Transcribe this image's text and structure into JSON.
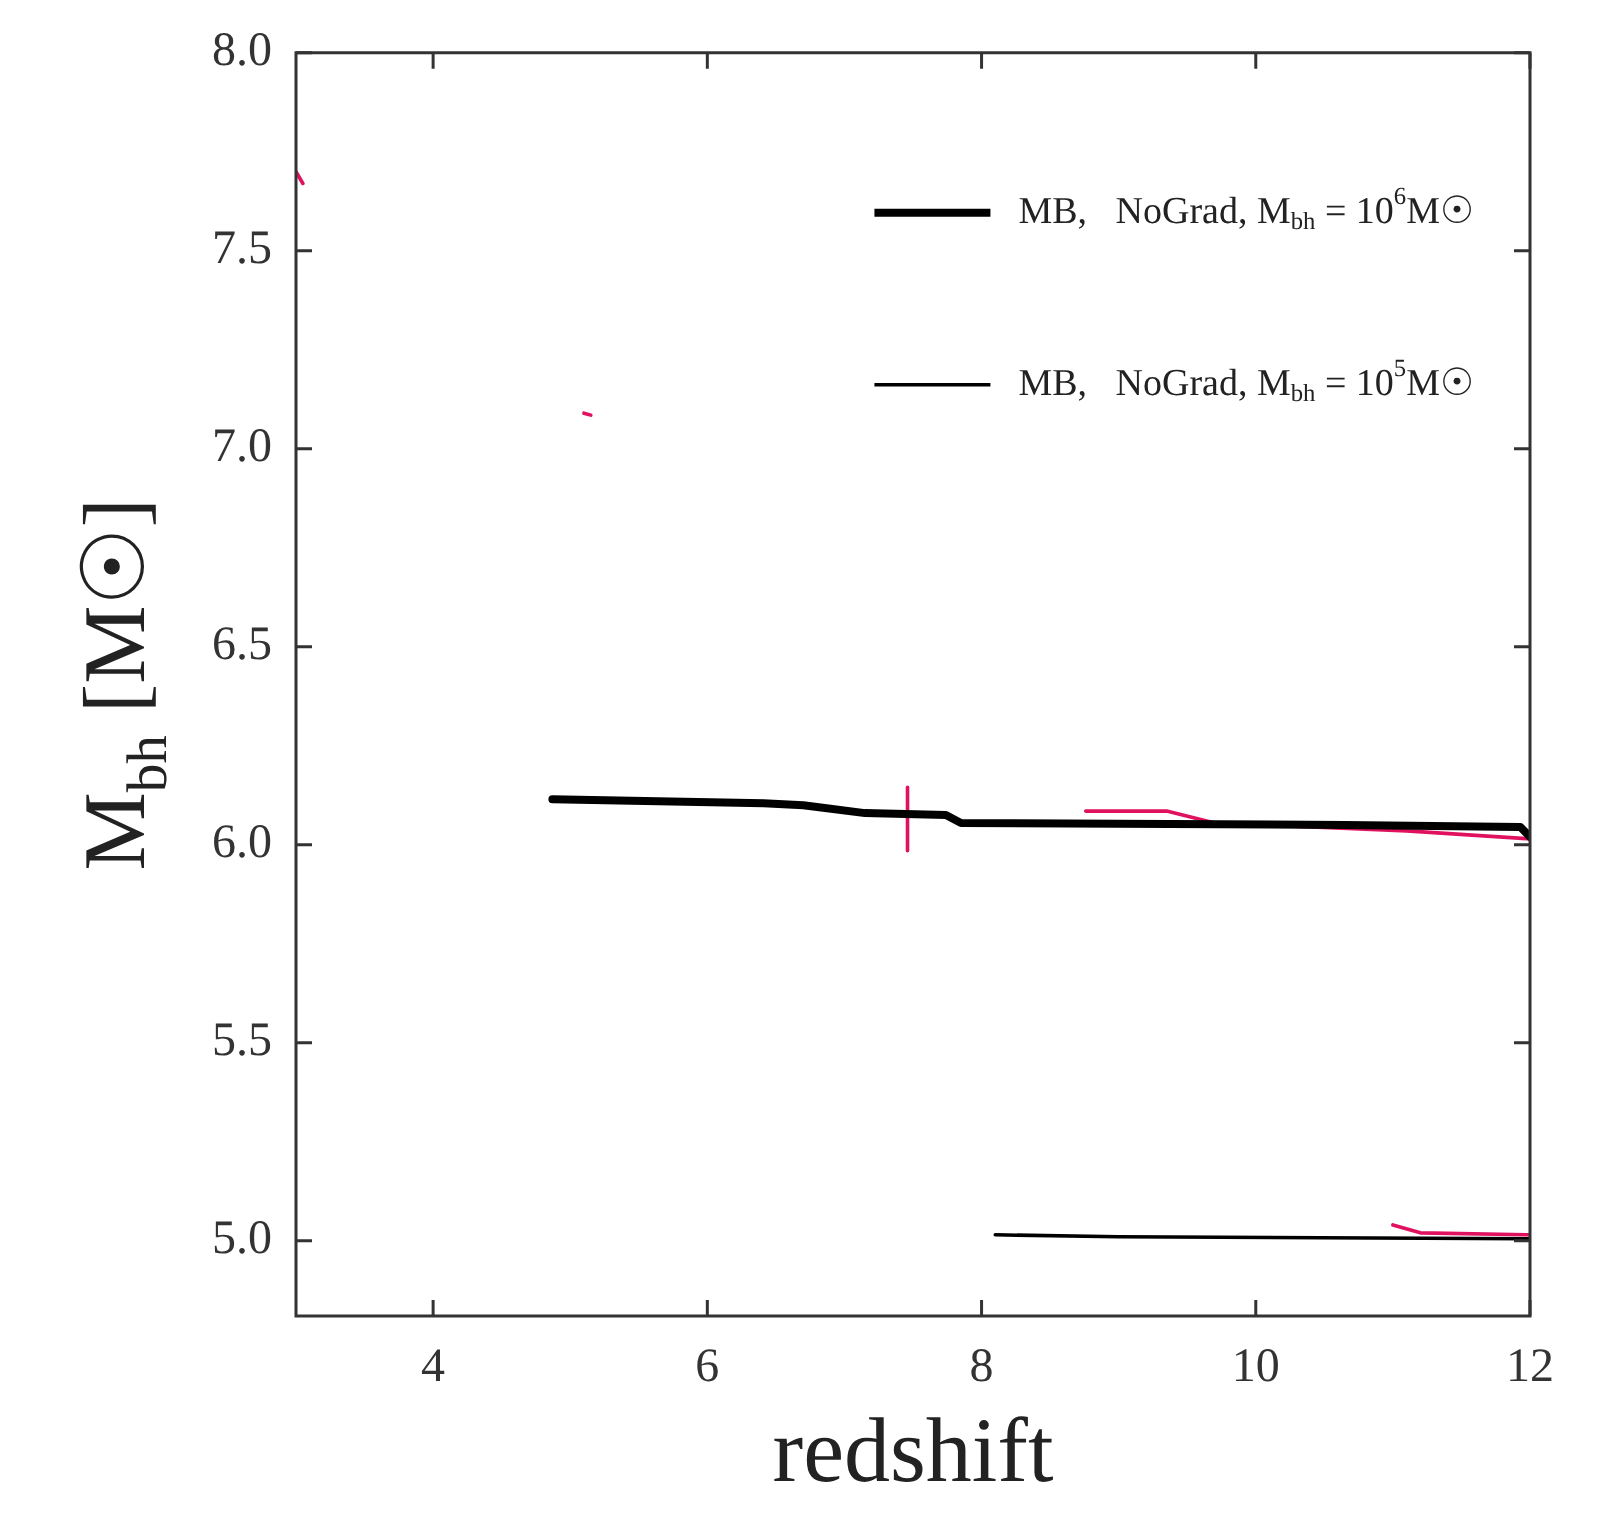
{
  "chart_data": {
    "type": "line",
    "xlabel": "redshift",
    "ylabel": "M$_{bh}$ [M☉]",
    "xlim": [
      3,
      12
    ],
    "xticks": [
      4,
      6,
      8,
      10,
      12
    ],
    "ylim": [
      4.81,
      8.0
    ],
    "yticks": [
      {
        "value": 5,
        "label": "5.0"
      },
      5.5,
      {
        "value": 6,
        "label": "6.0"
      },
      6.5,
      {
        "value": 7,
        "label": "7.0"
      },
      7.5,
      {
        "value": 8,
        "label": "8.0"
      }
    ],
    "grid": false,
    "legend": "top right",
    "marker": "none",
    "line_style": "solid",
    "series": [
      {
        "name": "MB,   NoGrad, M$_{bh}$ = 10$^{6}$M☉",
        "color": "#000000",
        "x": [
          4.87,
          6.41,
          6.7,
          7.15,
          7.74,
          7.85,
          10.65,
          11.93,
          12.0
        ],
        "values": [
          6.115,
          6.105,
          6.1,
          6.08,
          6.075,
          6.055,
          6.05,
          6.045,
          6.02
        ]
      },
      {
        "name": "MB,   NoGrad, M$_{bh}$ = 10$^{5}$M☉",
        "color": "#000000",
        "x": [
          8.1,
          9.0,
          12.0
        ],
        "values": [
          5.015,
          5.01,
          5.005
        ]
      },
      {
        "color": "#e0115f",
        "x": [
          8.76,
          9.35,
          9.7,
          11.1,
          12.0
        ],
        "values": [
          6.085,
          6.085,
          6.055,
          6.035,
          6.015
        ]
      },
      {
        "color": "#e0115f",
        "x": [
          7.46,
          7.46
        ],
        "values": [
          6.145,
          5.985
        ]
      },
      {
        "color": "#e0115f",
        "x": [
          11.0,
          11.2,
          12.0
        ],
        "values": [
          5.04,
          5.02,
          5.015
        ]
      },
      {
        "color": "#e0115f",
        "x": [
          3.0,
          3.05
        ],
        "values": [
          7.7,
          7.67
        ]
      },
      {
        "color": "#e0115f",
        "x": [
          5.1,
          5.15
        ],
        "values": [
          7.09,
          7.085
        ]
      }
    ]
  }
}
